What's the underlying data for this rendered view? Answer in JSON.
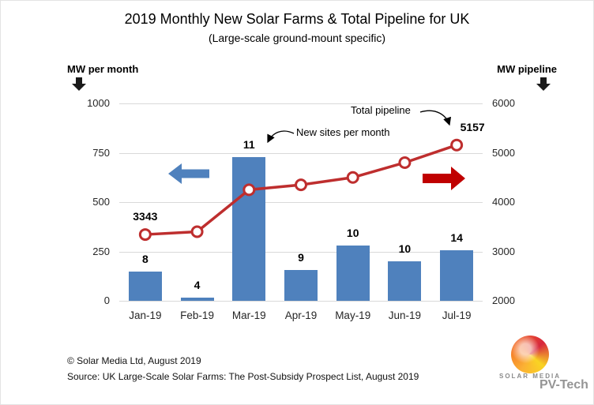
{
  "page": {
    "title": "2019 Monthly New Solar Farms & Total Pipeline for UK",
    "subtitle": "(Large-scale ground-mount specific)"
  },
  "annotations": {
    "total_pipeline": "Total pipeline",
    "new_sites": "New sites per month"
  },
  "footer": {
    "copyright": "© Solar Media Ltd, August 2019",
    "source": "Source: UK Large-Scale Solar Farms: The Post-Subsidy Prospect List, August 2019"
  },
  "branding": {
    "logo_text": "SOLAR MEDIA",
    "watermark": "PV-Tech"
  },
  "colors": {
    "bar": "#4f81bd",
    "line": "#be2e2e",
    "marker_fill": "#ffffff",
    "left_arrow": "#4f81bd",
    "right_arrow": "#c00000",
    "grid": "#d9d9d9"
  },
  "chart_data": {
    "type": "combo (bar + line)",
    "title": "2019 Monthly New Solar Farms & Total Pipeline for UK",
    "subtitle": "(Large-scale ground-mount specific)",
    "categories": [
      "Jan-19",
      "Feb-19",
      "Mar-19",
      "Apr-19",
      "May-19",
      "Jun-19",
      "Jul-19"
    ],
    "series": [
      {
        "name": "New capacity per month",
        "type": "bar",
        "axis": "left",
        "values": [
          150,
          15,
          730,
          155,
          280,
          200,
          255
        ],
        "labels": [
          "8",
          "4",
          "11",
          "9",
          "10",
          "10",
          "14"
        ],
        "labels_meaning": "new sites per month"
      },
      {
        "name": "Total pipeline",
        "type": "line",
        "axis": "right",
        "values": [
          3343,
          3400,
          4250,
          4350,
          4500,
          4800,
          5157
        ],
        "first_point_label": "3343",
        "last_point_label": "5157"
      }
    ],
    "left_axis": {
      "label": "MW per month",
      "min": 0,
      "max": 1000,
      "ticks": [
        0,
        250,
        500,
        750,
        1000
      ]
    },
    "right_axis": {
      "label": "MW pipeline",
      "min": 2000,
      "max": 6000,
      "ticks": [
        2000,
        3000,
        4000,
        5000,
        6000
      ]
    },
    "grid": true,
    "legend": "none (annotated arrows indicate axes)"
  }
}
